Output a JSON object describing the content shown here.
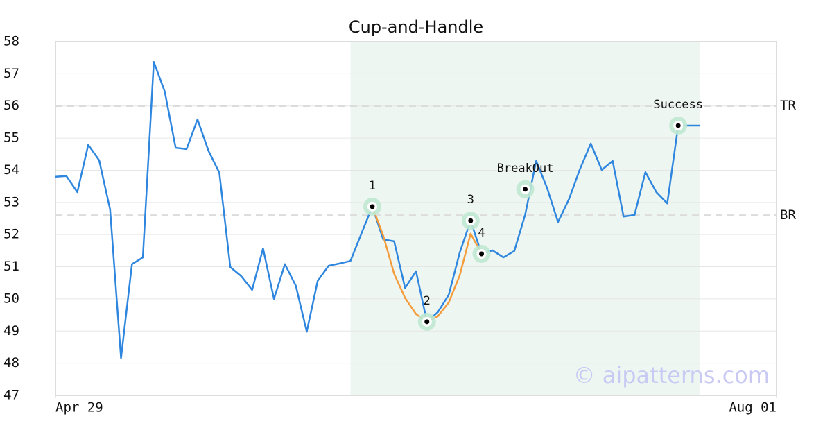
{
  "chart_data": {
    "type": "line",
    "title": "Cup-and-Handle",
    "x": [
      0,
      1,
      2,
      3,
      4,
      5,
      6,
      7,
      8,
      9,
      10,
      11,
      12,
      13,
      14,
      15,
      16,
      17,
      18,
      19,
      20,
      21,
      22,
      23,
      24,
      25,
      26,
      27,
      28,
      29,
      30,
      31,
      32,
      33,
      34,
      35,
      36,
      37,
      38,
      39,
      40,
      41,
      42,
      43,
      44,
      45,
      46,
      47,
      48,
      49,
      50,
      51,
      52,
      53,
      54,
      55,
      56,
      57,
      58,
      59
    ],
    "series": [
      {
        "color": "#2e86de",
        "values": [
          53.8,
          53.82,
          53.32,
          54.79,
          54.31,
          52.78,
          48.16,
          51.08,
          51.29,
          57.37,
          56.45,
          54.7,
          54.66,
          55.58,
          54.61,
          53.92,
          50.99,
          50.71,
          50.28,
          51.57,
          50.0,
          51.08,
          50.41,
          48.98,
          50.56,
          51.03,
          51.1,
          51.18,
          52.03,
          52.87,
          51.85,
          51.79,
          50.34,
          50.86,
          49.29,
          49.59,
          50.13,
          51.44,
          52.43,
          51.4,
          51.51,
          51.29,
          51.49,
          52.63,
          54.29,
          53.45,
          52.39,
          53.1,
          54.03,
          54.83,
          54.01,
          54.29,
          52.56,
          52.61,
          53.94,
          53.32,
          52.97,
          55.39,
          55.39,
          55.39
        ]
      }
    ],
    "pattern_curve": {
      "color": "#f39c3c",
      "x": [
        29,
        30,
        31,
        32,
        33,
        34,
        35,
        36,
        37,
        38,
        39
      ],
      "values": [
        52.87,
        51.97,
        50.78,
        50.03,
        49.53,
        49.29,
        49.46,
        49.89,
        50.73,
        52.03,
        51.4
      ]
    },
    "pattern_zone": {
      "color": "#eef6f2",
      "x": [
        27,
        59
      ]
    },
    "markers": [
      {
        "label": "1",
        "x": 29,
        "y": 52.87
      },
      {
        "label": "2",
        "x": 34,
        "y": 49.29
      },
      {
        "label": "3",
        "x": 38,
        "y": 52.43
      },
      {
        "label": "4",
        "x": 39,
        "y": 51.4
      },
      {
        "label": "BreakOut",
        "x": 43,
        "y": 53.41
      },
      {
        "label": "Success",
        "x": 57,
        "y": 55.39
      }
    ],
    "levels": [
      {
        "label": "TR",
        "value": 56.0
      },
      {
        "label": "BR",
        "value": 52.6
      }
    ],
    "xlim": [
      0,
      66
    ],
    "xticks": [
      {
        "value": 0,
        "label": "Apr 29"
      },
      {
        "value": 66,
        "label": "Aug 01"
      }
    ],
    "ylim": [
      47,
      58
    ],
    "yticks": [
      47,
      48,
      49,
      50,
      51,
      52,
      53,
      54,
      55,
      56,
      57,
      58
    ],
    "grid": true,
    "watermark": "© aipatterns.com"
  }
}
